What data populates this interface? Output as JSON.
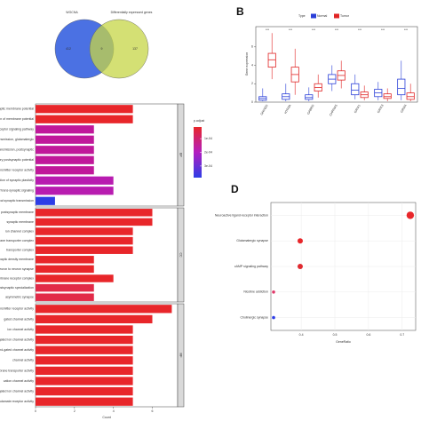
{
  "chart_data": [
    {
      "type": "venn",
      "sets": [
        {
          "name": "WGCNA",
          "color": "#4169e1",
          "count": 412
        },
        {
          "name": "Differentially expressed genes",
          "color": "#c5d545",
          "count": 137
        }
      ],
      "intersection": 9
    },
    {
      "type": "box",
      "panel": "B",
      "legend_title": "Type",
      "ylabel": "Gene expression",
      "ylim": [
        0,
        8.2
      ],
      "yticks": [
        0,
        2,
        4,
        6
      ],
      "categories": [
        "GRIN2D",
        "HTR3A",
        "GABRD",
        "CHRNA5",
        "GRIA1",
        "GRIK3",
        "GRM4"
      ],
      "annotations": [
        "***",
        "***",
        "***",
        "***",
        "***",
        "***",
        "***"
      ],
      "series": [
        {
          "name": "Normal",
          "color": "#2a3fd8",
          "boxes": [
            [
              0.1,
              0.2,
              0.4,
              0.6,
              1.5
            ],
            [
              0.1,
              0.3,
              0.6,
              0.9,
              2
            ],
            [
              0.1,
              0.3,
              0.5,
              0.8,
              1.6
            ],
            [
              1.2,
              2,
              2.5,
              3,
              4
            ],
            [
              0.3,
              0.8,
              1.3,
              2,
              3
            ],
            [
              0.2,
              0.6,
              1,
              1.4,
              2.2
            ],
            [
              0.2,
              0.8,
              1.5,
              2.5,
              4.5
            ]
          ]
        },
        {
          "name": "Tumor",
          "color": "#e02525",
          "boxes": [
            [
              2.5,
              3.8,
              4.6,
              5.3,
              7.5
            ],
            [
              0.8,
              2.2,
              3,
              3.8,
              5.8
            ],
            [
              0.5,
              1.2,
              1.6,
              2,
              3
            ],
            [
              1.5,
              2.4,
              2.9,
              3.4,
              4.5
            ],
            [
              0.2,
              0.5,
              0.8,
              1.1,
              1.8
            ],
            [
              0.1,
              0.4,
              0.6,
              0.9,
              1.5
            ],
            [
              0.1,
              0.3,
              0.6,
              1,
              2
            ]
          ]
        }
      ]
    },
    {
      "type": "bar",
      "xlabel": "Count",
      "xlim": [
        0,
        7.3
      ],
      "xticks": [
        0,
        2,
        4,
        6
      ],
      "legend_title": "p.adjust",
      "clim": [
        1.5e-05,
        0.000385
      ],
      "colorbar": [
        "#e8262a",
        "#b21ec0",
        "#2d3de6"
      ],
      "cticks": [
        {
          "value": 0.0001,
          "label": "1e-04"
        },
        {
          "value": 0.0002,
          "label": "2e-04"
        },
        {
          "value": 0.0003,
          "label": "3e-04"
        }
      ],
      "facets": [
        {
          "name": "BP",
          "categories": [
            "regulation of postsynaptic membrane potential",
            "regulation of membrane potential",
            "ionotropic glutamate receptor signaling pathway",
            "synaptic transmission, glutamatergic",
            "chemical synaptic transmission, postsynaptic",
            "excitatory postsynaptic potential",
            "neurotransmitter receptor activity",
            "regulation of synaptic plasticity",
            "regulation of trans-synaptic signaling",
            "modulation of chemical synaptic transmission"
          ],
          "values": [
            5,
            5,
            3,
            3,
            3,
            3,
            3,
            4,
            4,
            1
          ],
          "colors": [
            "#e8262a",
            "#e8262a",
            "#c0189a",
            "#c0189a",
            "#c0189a",
            "#c0189a",
            "#c0189a",
            "#b81cb0",
            "#b81cb0",
            "#2d3de6"
          ]
        },
        {
          "name": "CC",
          "categories": [
            "postsynaptic membrane",
            "synaptic membrane",
            "ion channel complex",
            "transmembrane transporter complex",
            "transporter complex",
            "postsynaptic density membrane",
            "neuron to neuron synapse",
            "plasma membrane receptor complex",
            "postsynaptic specialization",
            "asymmetric synapse"
          ],
          "values": [
            6,
            6,
            5,
            5,
            5,
            3,
            3,
            4,
            3,
            3
          ],
          "colors": [
            "#e8262a",
            "#e8262a",
            "#e8262a",
            "#e8262a",
            "#e8262a",
            "#e8262a",
            "#e8262a",
            "#e8262a",
            "#e22a48",
            "#e22a48"
          ]
        },
        {
          "name": "MF",
          "categories": [
            "neurotransmitter receptor activity",
            "gated channel activity",
            "ion channel activity",
            "ligand-gated ion channel activity",
            "ligand-gated channel activity",
            "channel activity",
            "passive transmembrane transporter activity",
            "cation channel activity",
            "transmitter-gated ion channel activity",
            "glutamate receptor activity"
          ],
          "values": [
            7,
            6,
            5,
            5,
            5,
            5,
            5,
            5,
            5,
            5
          ],
          "colors": [
            "#e8262a",
            "#e8262a",
            "#e8262a",
            "#e8262a",
            "#e8262a",
            "#e8262a",
            "#e8262a",
            "#e8262a",
            "#e8262a",
            "#e8262a"
          ]
        }
      ]
    },
    {
      "type": "scatter",
      "panel": "D",
      "xlabel": "GeneRatio",
      "xlim": [
        0.31,
        0.74
      ],
      "xticks": [
        0.4,
        0.5,
        0.6,
        0.7
      ],
      "categories": [
        "Neuroactive ligand-receptor interaction",
        "Glutamatergic synapse",
        "cAMP signaling pathway",
        "Nicotine addiction",
        "Cholinergic synapse"
      ],
      "values": [
        0.724,
        0.397,
        0.397,
        0.318,
        0.318
      ],
      "counts": [
        7,
        5,
        5,
        3,
        3
      ],
      "colors": [
        "#e8262a",
        "#e8262a",
        "#e02a30",
        "#e03a6a",
        "#2d3de6"
      ]
    }
  ]
}
